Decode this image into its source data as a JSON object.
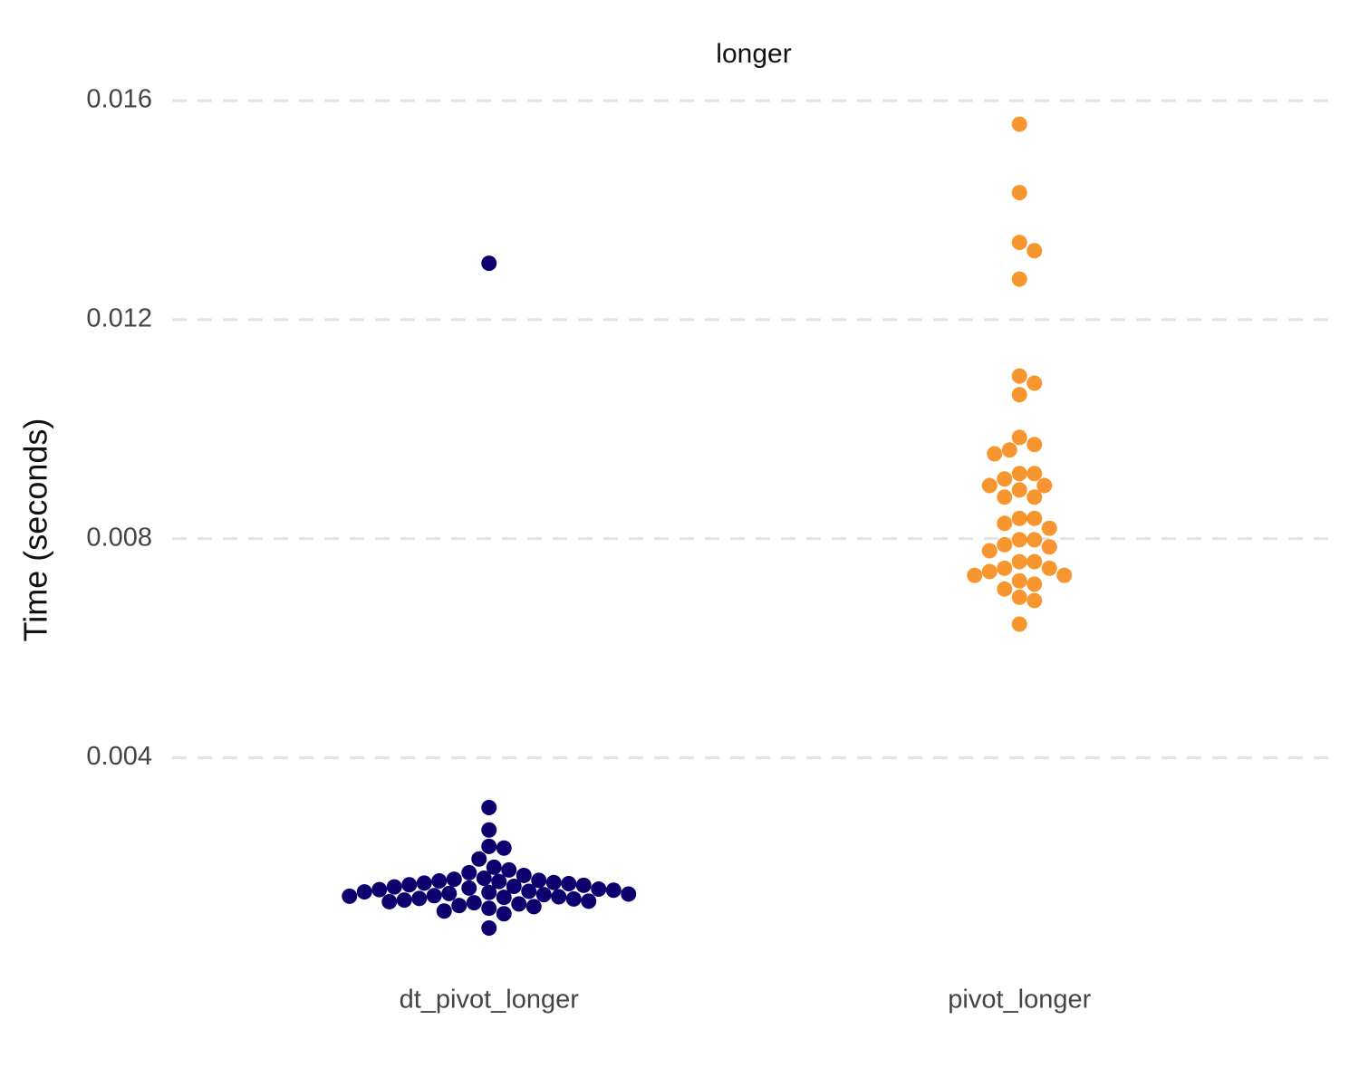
{
  "chart_data": {
    "type": "beeswarm",
    "title": "longer",
    "y_label": "Time (seconds)",
    "categories": [
      "dt_pivot_longer",
      "pivot_longer"
    ],
    "colors": [
      "#0d006e",
      "#f7962f"
    ],
    "values": [
      [
        0.01303,
        0.00309,
        0.00268,
        0.00238,
        0.00235,
        0.00215,
        0.002,
        0.00195,
        0.0019,
        0.00185,
        0.0018,
        0.00178,
        0.00176,
        0.00175,
        0.00174,
        0.00172,
        0.00171,
        0.0017,
        0.00168,
        0.00167,
        0.00165,
        0.00164,
        0.00162,
        0.0016,
        0.00159,
        0.00158,
        0.00156,
        0.00155,
        0.00154,
        0.00152,
        0.00151,
        0.0015,
        0.00148,
        0.00147,
        0.00146,
        0.00145,
        0.00143,
        0.00142,
        0.0014,
        0.00138,
        0.00137,
        0.00135,
        0.00133,
        0.0013,
        0.00128,
        0.00125,
        0.0012,
        0.00115,
        0.00089
      ],
      [
        0.01557,
        0.01432,
        0.01341,
        0.01326,
        0.01274,
        0.01097,
        0.01084,
        0.01063,
        0.00985,
        0.00972,
        0.00962,
        0.00955,
        0.00919,
        0.00919,
        0.00909,
        0.00897,
        0.00897,
        0.00889,
        0.00876,
        0.00876,
        0.00837,
        0.00837,
        0.00828,
        0.00819,
        0.00798,
        0.00798,
        0.00789,
        0.00785,
        0.00778,
        0.00758,
        0.00758,
        0.00746,
        0.00746,
        0.0074,
        0.00733,
        0.00733,
        0.00723,
        0.00717,
        0.00708,
        0.00693,
        0.00687,
        0.00644
      ]
    ],
    "ylim": [
      0.0006,
      0.0162
    ],
    "yticks": [
      0.004,
      0.008,
      0.012,
      0.016
    ],
    "grid": true
  }
}
